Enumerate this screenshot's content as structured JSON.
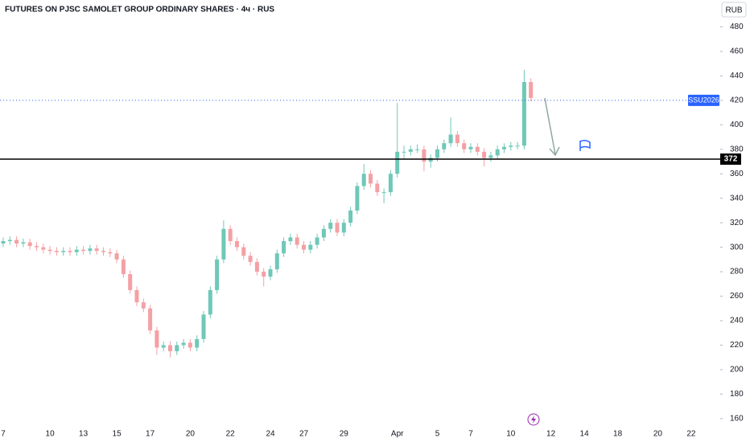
{
  "chart_data": {
    "type": "candlestick",
    "title": "FUTURES ON PJSC SAMOLET GROUP ORDINARY SHARES · 4ч · RUS",
    "currency": "RUB",
    "categories": [
      "7",
      null,
      null,
      null,
      null,
      null,
      null,
      "10",
      null,
      null,
      null,
      null,
      "13",
      null,
      null,
      null,
      null,
      "15",
      null,
      null,
      null,
      null,
      "17",
      null,
      null,
      null,
      null,
      null,
      "20",
      null,
      null,
      null,
      null,
      null,
      "22",
      null,
      null,
      null,
      null,
      null,
      "24",
      null,
      null,
      null,
      null,
      "27",
      null,
      null,
      null,
      null,
      null,
      "29",
      null,
      null,
      null,
      null,
      null,
      null,
      null,
      "Apr",
      null,
      null,
      null,
      null,
      null,
      "5",
      null,
      null,
      null,
      null,
      "7",
      null,
      null,
      null,
      null,
      null,
      "10",
      null,
      null,
      null,
      null,
      null,
      "12",
      null,
      null,
      null,
      null,
      "14",
      null,
      null,
      null,
      null,
      "18",
      null,
      null,
      null,
      null,
      null,
      "20",
      null,
      null,
      null,
      null,
      "22"
    ],
    "open": [
      303,
      305,
      306,
      303,
      304,
      301,
      300,
      298,
      297,
      296,
      297,
      296,
      298,
      297,
      299,
      297,
      296,
      295,
      290,
      278,
      265,
      255,
      250,
      232,
      218,
      220,
      215,
      220,
      222,
      218,
      225,
      245,
      265,
      290,
      315,
      305,
      300,
      293,
      288,
      280,
      276,
      282,
      295,
      305,
      308,
      302,
      298,
      302,
      308,
      315,
      320,
      312,
      320,
      330,
      350,
      360,
      352,
      345,
      345,
      360,
      378,
      378,
      380,
      380,
      370,
      373,
      380,
      385,
      392,
      385,
      380,
      382,
      378,
      373,
      375,
      380,
      382,
      383,
      383,
      435,
      null,
      null,
      null,
      null,
      null,
      null,
      null,
      null,
      null,
      null,
      null,
      null,
      null,
      null,
      null,
      null,
      null,
      null,
      null,
      null,
      null,
      null,
      null,
      null
    ],
    "high": [
      308,
      309,
      309,
      307,
      307,
      304,
      303,
      301,
      300,
      300,
      300,
      301,
      301,
      302,
      302,
      300,
      299,
      298,
      293,
      281,
      268,
      258,
      253,
      235,
      223,
      223,
      223,
      225,
      225,
      228,
      248,
      268,
      293,
      322,
      318,
      308,
      303,
      296,
      291,
      283,
      285,
      298,
      308,
      311,
      311,
      305,
      305,
      311,
      318,
      323,
      323,
      323,
      333,
      353,
      368,
      363,
      355,
      348,
      363,
      418,
      383,
      383,
      384,
      383,
      376,
      383,
      388,
      406,
      395,
      388,
      385,
      385,
      381,
      378,
      383,
      385,
      386,
      386,
      445,
      438,
      null,
      null,
      null,
      null,
      null,
      null,
      null,
      null,
      null,
      null,
      null,
      null,
      null,
      null,
      null,
      null,
      null,
      null,
      null,
      null,
      null,
      null,
      null,
      null
    ],
    "low": [
      300,
      302,
      300,
      300,
      298,
      297,
      295,
      294,
      293,
      293,
      293,
      293,
      294,
      294,
      294,
      293,
      292,
      287,
      275,
      262,
      252,
      247,
      229,
      212,
      215,
      210,
      212,
      217,
      215,
      215,
      222,
      242,
      262,
      287,
      302,
      297,
      290,
      285,
      277,
      268,
      273,
      279,
      292,
      302,
      299,
      295,
      295,
      299,
      305,
      312,
      309,
      309,
      317,
      327,
      347,
      349,
      342,
      336,
      342,
      357,
      372,
      375,
      377,
      362,
      365,
      370,
      377,
      382,
      382,
      377,
      377,
      375,
      366,
      370,
      372,
      377,
      379,
      380,
      380,
      419,
      null,
      null,
      null,
      null,
      null,
      null,
      null,
      null,
      null,
      null,
      null,
      null,
      null,
      null,
      null,
      null,
      null,
      null,
      null,
      null,
      null,
      null,
      null,
      null
    ],
    "close": [
      305,
      306,
      303,
      304,
      301,
      300,
      298,
      297,
      296,
      297,
      296,
      298,
      297,
      299,
      297,
      296,
      295,
      290,
      278,
      265,
      255,
      250,
      232,
      218,
      220,
      215,
      220,
      222,
      218,
      225,
      245,
      265,
      290,
      315,
      305,
      300,
      293,
      288,
      280,
      276,
      282,
      295,
      305,
      308,
      302,
      298,
      302,
      308,
      315,
      320,
      312,
      320,
      330,
      350,
      360,
      352,
      345,
      345,
      360,
      378,
      378,
      380,
      380,
      370,
      373,
      380,
      385,
      392,
      385,
      380,
      382,
      378,
      373,
      375,
      380,
      382,
      383,
      383,
      435,
      422,
      null,
      null,
      null,
      null,
      null,
      null,
      null,
      null,
      null,
      null,
      null,
      null,
      null,
      null,
      null,
      null,
      null,
      null,
      null,
      null,
      null,
      null,
      null,
      null
    ],
    "up_color": "#6fc8b8",
    "down_color": "#f4a0a5",
    "ylim": [
      154,
      502
    ],
    "yticks": [
      160,
      180,
      200,
      220,
      240,
      260,
      280,
      300,
      320,
      340,
      360,
      380,
      400,
      420,
      440,
      460,
      480
    ],
    "horizontal_line": {
      "value": 372,
      "color": "#000000"
    },
    "reference_line": {
      "value": 420,
      "label": "SSU2026",
      "color": "#2962ff"
    }
  }
}
